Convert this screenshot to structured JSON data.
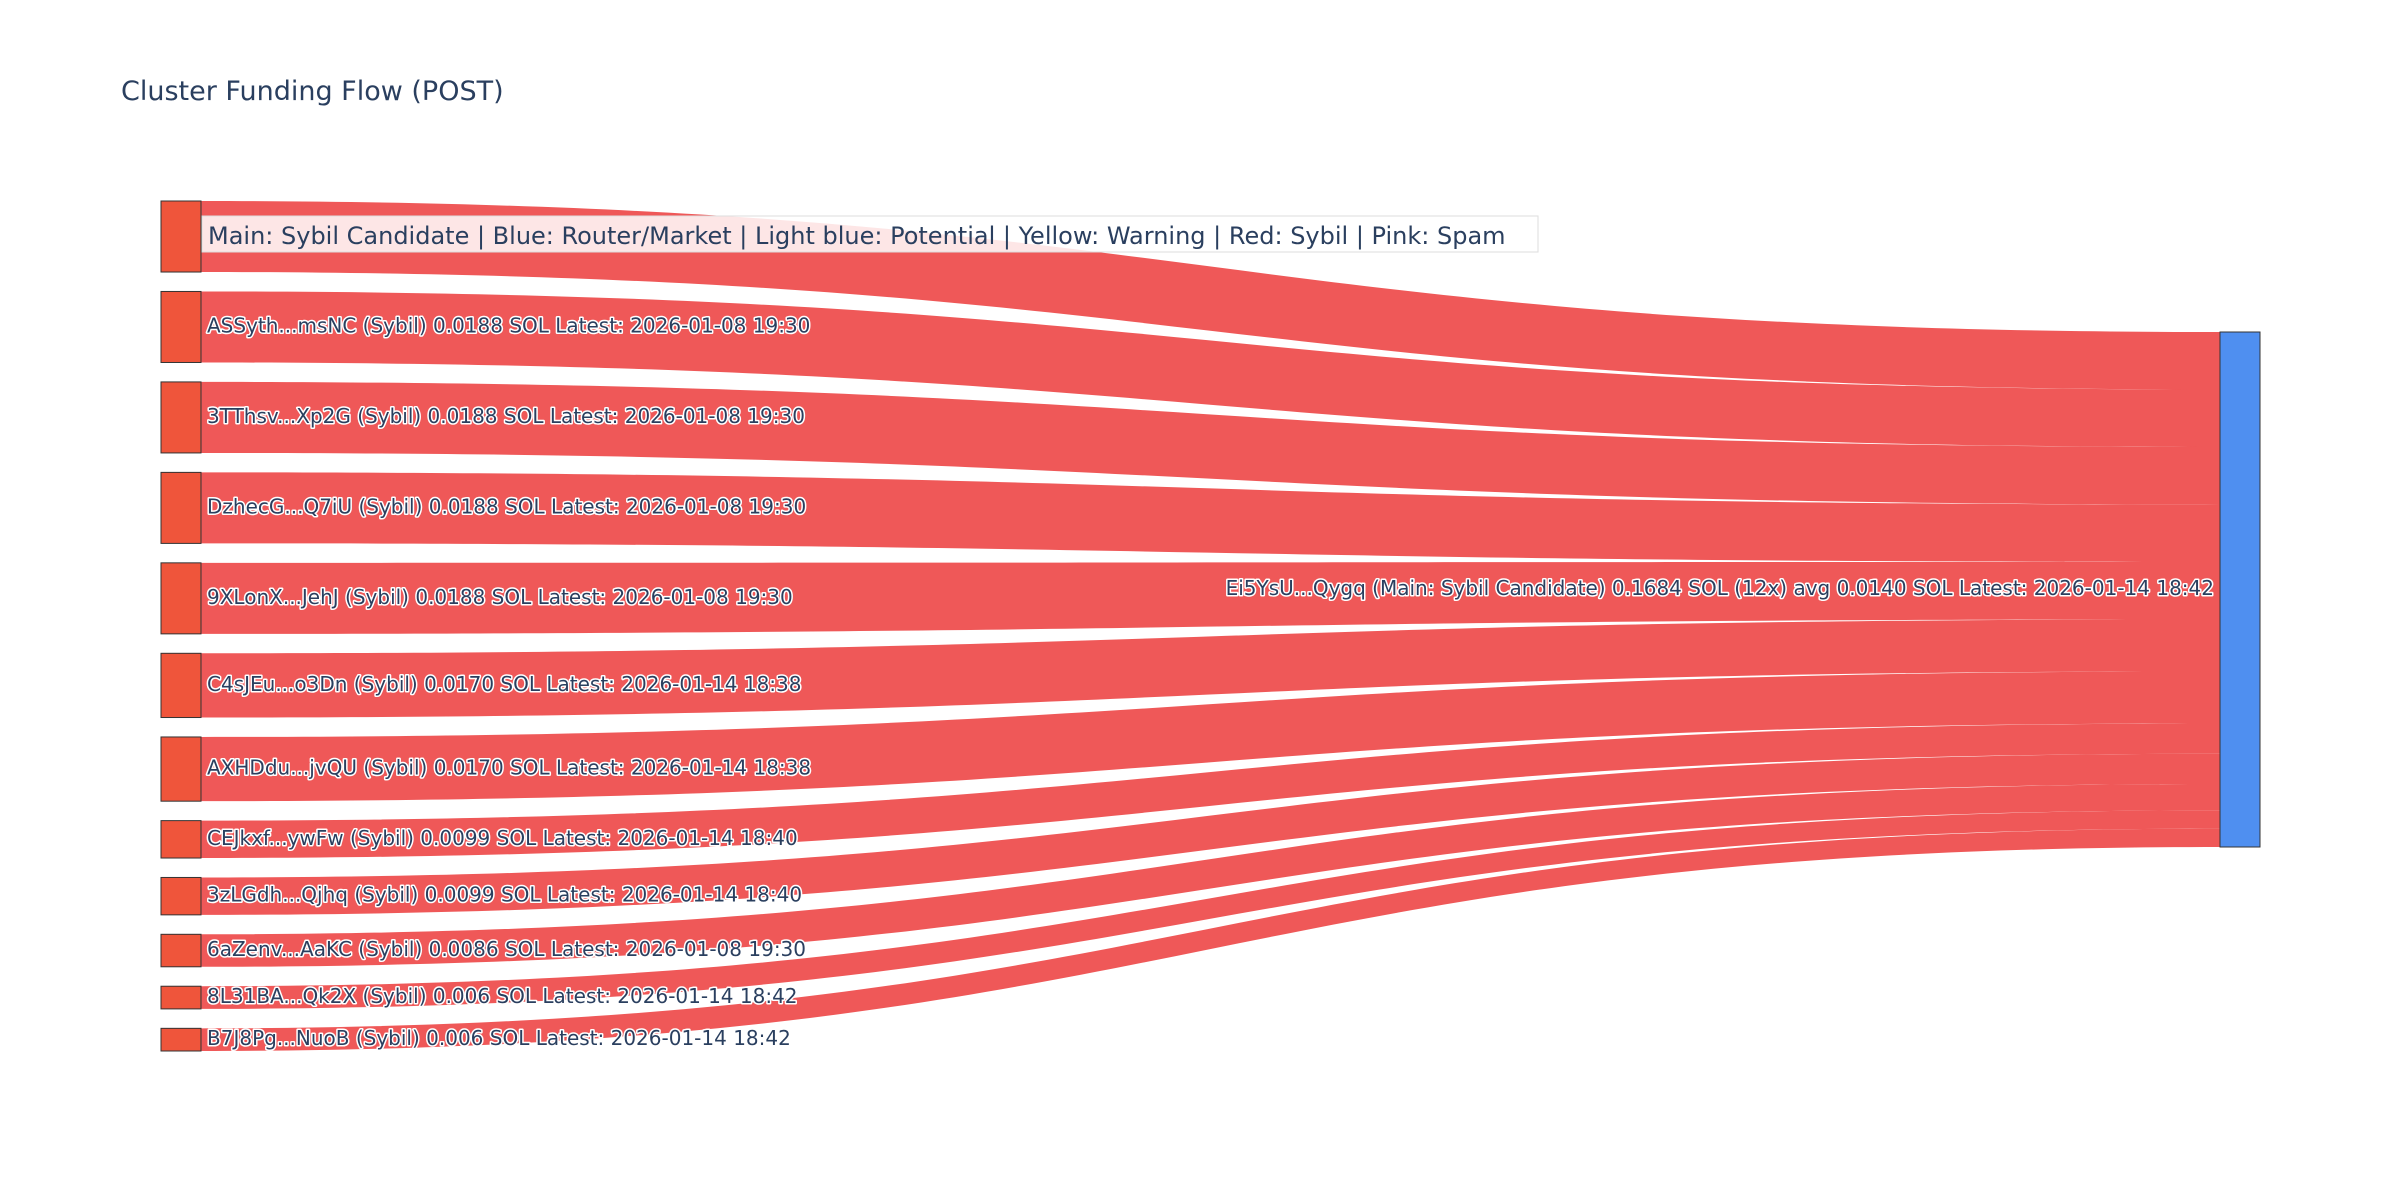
{
  "chart_data": {
    "type": "sankey",
    "title": "Cluster Funding Flow (POST)",
    "legend_text": "Main: Sybil Candidate  |  Blue: Router/Market | Light blue: Potential | Yellow: Warning | Red: Sybil | Pink: Spam",
    "colors": {
      "source_node": "#ef553b",
      "link": "#ef5555",
      "target_node": "#4f8ff0",
      "node_border": "#333333"
    },
    "target": {
      "label": "Ei5YsU...Qygq (Main: Sybil Candidate) 0.1684 SOL (12x) avg 0.0140 SOL Latest: 2026-01-14 18:42",
      "value": 0.1684
    },
    "sources": [
      {
        "label": "",
        "value": 0.0188
      },
      {
        "label": "ASSyth...msNC (Sybil) 0.0188 SOL Latest: 2026-01-08 19:30",
        "value": 0.0188
      },
      {
        "label": "3TThsv...Xp2G (Sybil) 0.0188 SOL Latest: 2026-01-08 19:30",
        "value": 0.0188
      },
      {
        "label": "DzhecG...Q7iU (Sybil) 0.0188 SOL Latest: 2026-01-08 19:30",
        "value": 0.0188
      },
      {
        "label": "9XLonX...JehJ (Sybil) 0.0188 SOL Latest: 2026-01-08 19:30",
        "value": 0.0188
      },
      {
        "label": "C4sJEu...o3Dn (Sybil) 0.0170 SOL Latest: 2026-01-14 18:38",
        "value": 0.017
      },
      {
        "label": "AXHDdu...jvQU (Sybil) 0.0170 SOL Latest: 2026-01-14 18:38",
        "value": 0.017
      },
      {
        "label": "CEJkxf...ywFw (Sybil) 0.0099 SOL Latest: 2026-01-14 18:40",
        "value": 0.0099
      },
      {
        "label": "3zLGdh...Qjhq (Sybil) 0.0099 SOL Latest: 2026-01-14 18:40",
        "value": 0.0099
      },
      {
        "label": "6aZenv...AaKC (Sybil) 0.0086 SOL Latest: 2026-01-08 19:30",
        "value": 0.0086
      },
      {
        "label": "8L31BA...Qk2X (Sybil) 0.006 SOL Latest: 2026-01-14 18:42",
        "value": 0.006
      },
      {
        "label": "B7J8Pg...NuoB (Sybil) 0.006 SOL Latest: 2026-01-14 18:42",
        "value": 0.006
      }
    ]
  }
}
